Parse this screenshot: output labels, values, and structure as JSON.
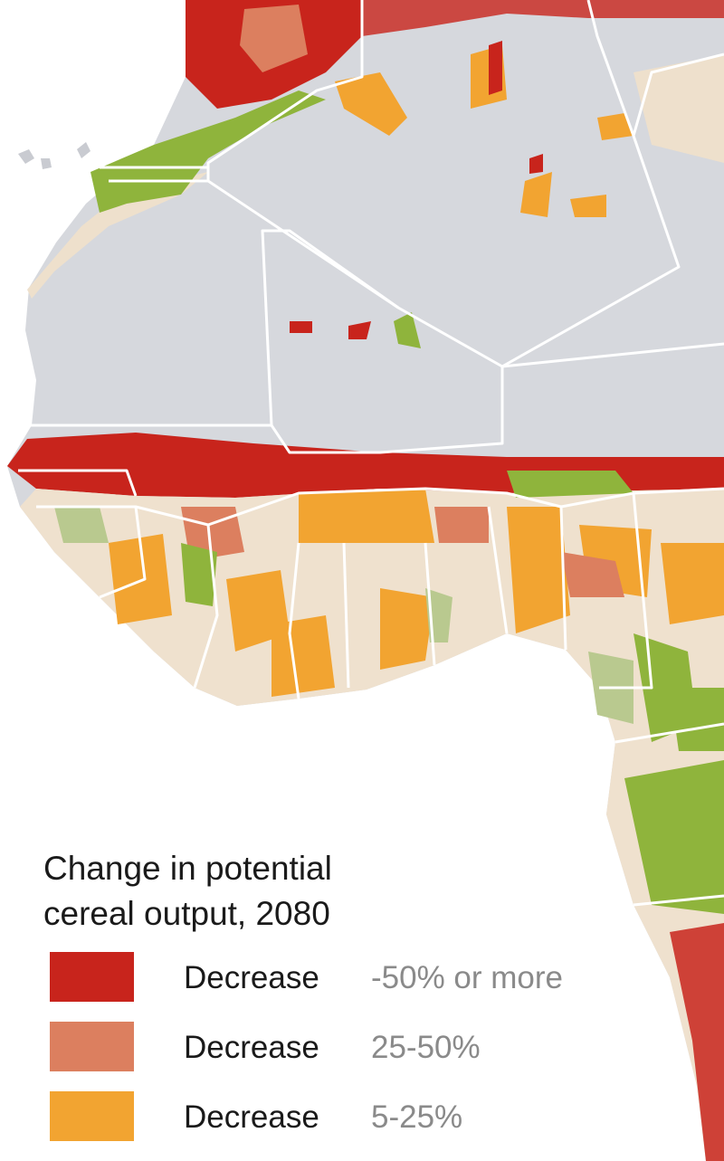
{
  "legend": {
    "title": [
      "Change in potential",
      "cereal output, 2080"
    ],
    "items": [
      {
        "label": "Decrease",
        "range": "-50% or more",
        "color": "#c8241c"
      },
      {
        "label": "Decrease",
        "range": "25-50%",
        "color": "#dc7f5f"
      },
      {
        "label": "Decrease",
        "range": "5-25%",
        "color": "#f2a431"
      }
    ]
  }
}
